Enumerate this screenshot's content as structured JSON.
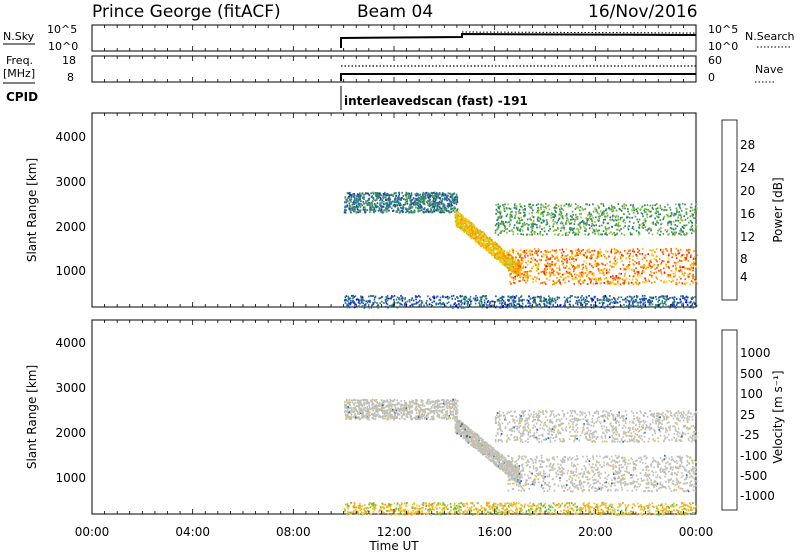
{
  "header": {
    "radar": "Prince George (fitACF)",
    "beam": "Beam 04",
    "date": "16/Nov/2016"
  },
  "strip": {
    "nsky_label": "N.Sky",
    "nsky_ticks": [
      "10^5",
      "10^0"
    ],
    "nsearch_label": "N.Search",
    "nsearch_ticks": [
      "10^5",
      "10^0"
    ],
    "freq_label": "Freq.",
    "freq_unit": "[MHz]",
    "freq_ticks": [
      "18",
      "8"
    ],
    "nave_label": "Nave",
    "nave_ticks": [
      "60",
      "0"
    ],
    "cpid_label": "CPID",
    "cpid_text": "interleavedscan (fast) -191"
  },
  "panels": {
    "power": {
      "ylabel": "Slant Range [km]",
      "yticks": [
        "4000",
        "3000",
        "2000",
        "1000"
      ],
      "cbar_label": "Power [dB]",
      "cbar_ticks": [
        "28",
        "24",
        "20",
        "16",
        "12",
        "8",
        "4"
      ],
      "cbar_colors": [
        "#0000e0",
        "#2040c0",
        "#3070a0",
        "#2a8a5a",
        "#5aa050",
        "#8ac83a",
        "#d0d020",
        "#ffc800",
        "#ff9600",
        "#ff5000",
        "#ee1010"
      ]
    },
    "velocity": {
      "ylabel": "Slant Range [km]",
      "yticks": [
        "4000",
        "3000",
        "2000",
        "1000"
      ],
      "cbar_label": "Velocity [m s⁻¹]",
      "cbar_ticks": [
        "1000",
        "500",
        "100",
        "25",
        "-25",
        "-100",
        "-500",
        "-1000"
      ],
      "cbar_colors": [
        "#1e3cc8",
        "#2f6ab0",
        "#2f8a60",
        "#58c040",
        "#c0c0b8",
        "#c0c0b8",
        "#f0c030",
        "#ff9a00",
        "#ff6000",
        "#ff2000",
        "#ee0000"
      ]
    }
  },
  "xaxis": {
    "ticks": [
      "00:00",
      "04:00",
      "08:00",
      "12:00",
      "16:00",
      "20:00",
      "00:00"
    ],
    "label": "Time UT"
  },
  "chart_data": {
    "type": "heatmap",
    "x_unit": "hours UT",
    "x_range": [
      0,
      24
    ],
    "y_range_km": [
      180,
      4500
    ],
    "data_start_hour": 10,
    "power_scale_db": [
      0,
      32
    ],
    "velocity_scale": [
      -1200,
      1200
    ],
    "scatter_features": [
      {
        "name": "upper band",
        "hours": [
          10,
          14.5
        ],
        "range_km": [
          2300,
          2750
        ],
        "power_db": 8
      },
      {
        "name": "descending echo",
        "hours": [
          14.4,
          17.0
        ],
        "range_km": [
          2200,
          1000
        ],
        "power_db": 22
      },
      {
        "name": "main band",
        "hours": [
          16.5,
          24
        ],
        "range_km": [
          700,
          1500
        ],
        "power_db": 26
      },
      {
        "name": "upper late band",
        "hours": [
          16.0,
          24
        ],
        "range_km": [
          1800,
          2500
        ],
        "power_db": 12
      },
      {
        "name": "near range",
        "hours": [
          10,
          24
        ],
        "range_km": [
          180,
          450
        ],
        "power_db": 6
      }
    ]
  }
}
